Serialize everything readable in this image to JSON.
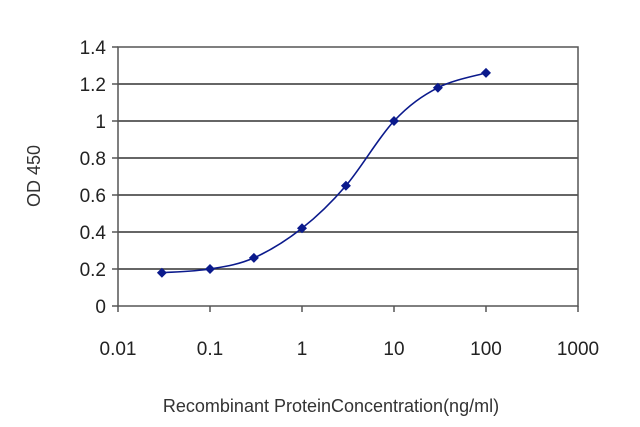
{
  "chart_data": {
    "type": "line",
    "x_scale": "log",
    "xlabel": "Recombinant ProteinConcentration(ng/ml)",
    "ylabel": "OD 450",
    "xlim": [
      0.01,
      1000
    ],
    "ylim": [
      0,
      1.4
    ],
    "x_ticks": [
      0.01,
      0.1,
      1,
      10,
      100,
      1000
    ],
    "x_tick_labels": [
      "0.01",
      "0.1",
      "1",
      "10",
      "100",
      "1000"
    ],
    "y_ticks": [
      0,
      0.2,
      0.4,
      0.6,
      0.8,
      1,
      1.2,
      1.4
    ],
    "y_tick_labels": [
      "0",
      "0.2",
      "0.4",
      "0.6",
      "0.8",
      "1",
      "1.2",
      "1.4"
    ],
    "grid": "horizontal",
    "series": [
      {
        "color": "#0b1a8c",
        "x": [
          0.03,
          0.1,
          0.3,
          1,
          3,
          10,
          30,
          100
        ],
        "y": [
          0.18,
          0.2,
          0.26,
          0.42,
          0.65,
          1.0,
          1.18,
          1.26
        ]
      }
    ]
  }
}
